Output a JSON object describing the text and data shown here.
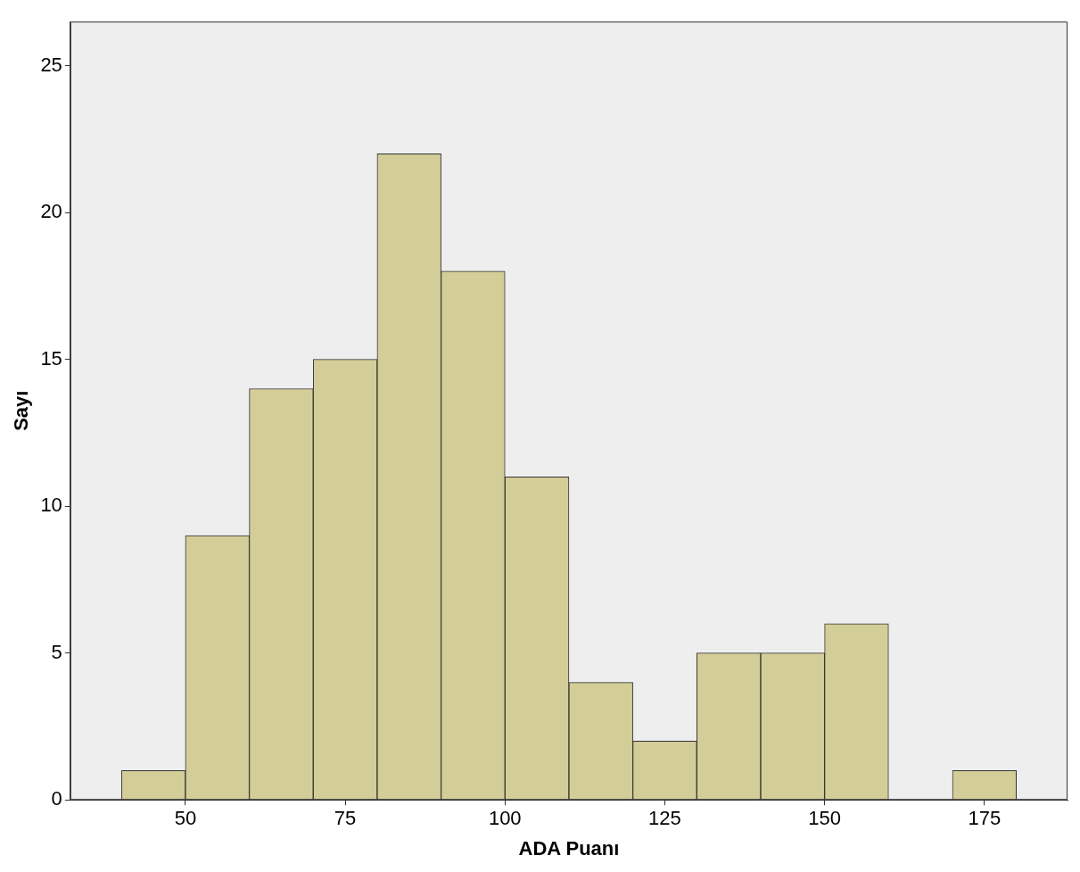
{
  "chart_data": {
    "type": "histogram",
    "xlabel": "ADA Puanı",
    "ylabel": "Sayı",
    "bins": [
      40,
      50,
      60,
      70,
      80,
      90,
      100,
      110,
      120,
      130,
      140,
      150,
      160,
      170,
      180
    ],
    "values": [
      1,
      9,
      14,
      15,
      22,
      18,
      11,
      4,
      2,
      5,
      5,
      6,
      0,
      1
    ],
    "color": "#d3cd98",
    "xlim": [
      32,
      188
    ],
    "xticks": [
      50,
      75,
      100,
      125,
      150,
      175
    ],
    "ylim": [
      0,
      26.5
    ],
    "yticks": [
      0,
      5,
      10,
      15,
      20,
      25
    ],
    "grid": false,
    "legend": false
  }
}
